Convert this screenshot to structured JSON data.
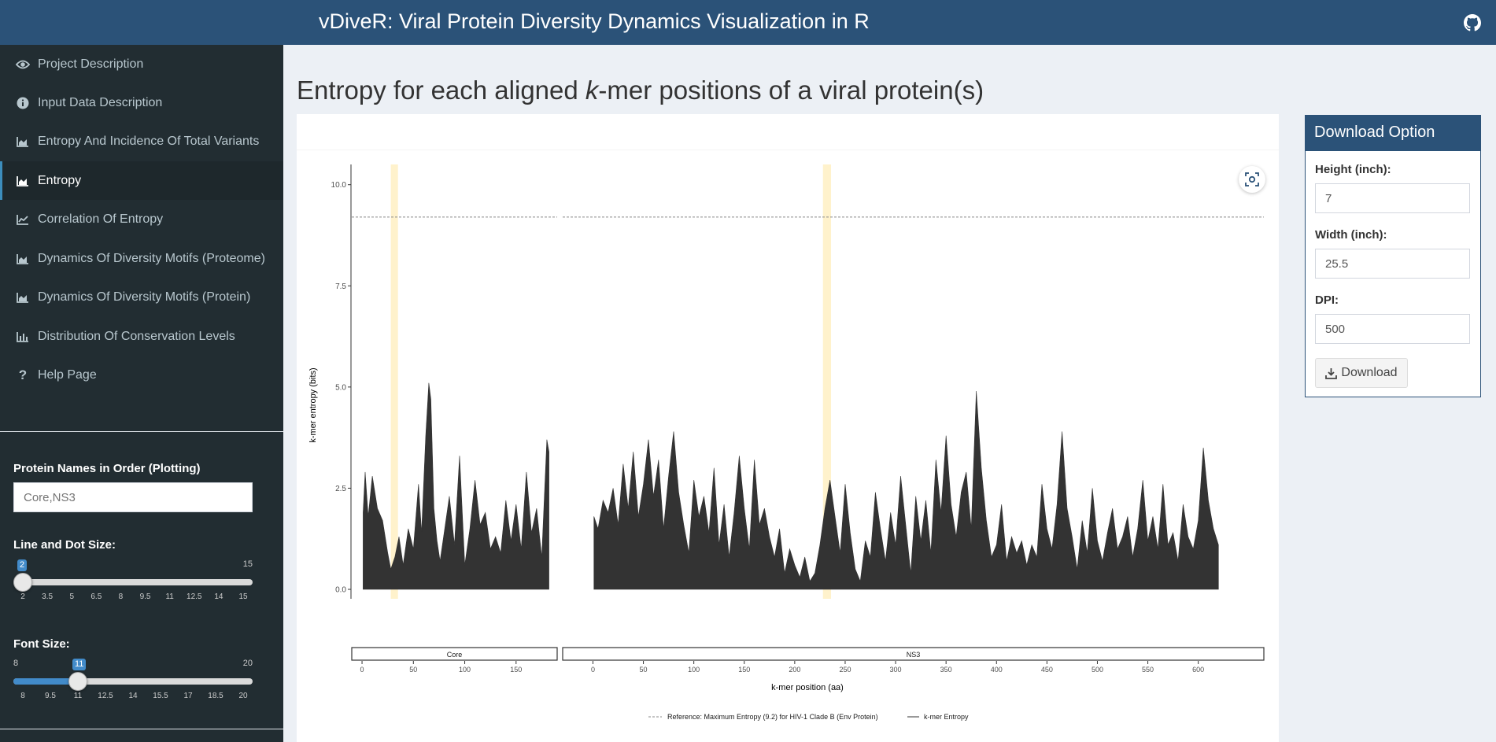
{
  "header": {
    "title": "vDiveR: Viral Protein Diversity Dynamics Visualization in R",
    "github_icon": "github-icon"
  },
  "sidebar": {
    "items": [
      {
        "label": "Project Description",
        "icon": "eye-icon",
        "active": false
      },
      {
        "label": "Input Data Description",
        "icon": "info-icon",
        "active": false
      },
      {
        "label": "Entropy And Incidence Of Total Variants",
        "icon": "area-chart-icon",
        "active": false
      },
      {
        "label": "Entropy",
        "icon": "area-chart-icon",
        "active": true
      },
      {
        "label": "Correlation Of Entropy",
        "icon": "line-chart-icon",
        "active": false
      },
      {
        "label": "Dynamics Of Diversity Motifs (Proteome)",
        "icon": "area-chart-icon",
        "active": false
      },
      {
        "label": "Dynamics Of Diversity Motifs (Protein)",
        "icon": "area-chart-icon",
        "active": false
      },
      {
        "label": "Distribution Of Conservation Levels",
        "icon": "bar-chart-icon",
        "active": false
      },
      {
        "label": "Help Page",
        "icon": "question-icon",
        "active": false
      }
    ],
    "protein_names": {
      "label": "Protein Names in Order (Plotting)",
      "placeholder": "Core,NS3"
    },
    "line_dot_size": {
      "label": "Line and Dot Size:",
      "min": "2",
      "max": "15",
      "value": "2",
      "fraction": 0.0,
      "ticks": [
        "2",
        "3.5",
        "5",
        "6.5",
        "8",
        "9.5",
        "11",
        "12.5",
        "14",
        "15"
      ]
    },
    "font_size": {
      "label": "Font Size:",
      "min": "8",
      "max": "20",
      "value": "11",
      "fraction": 0.25,
      "ticks": [
        "8",
        "9.5",
        "11",
        "12.5",
        "14",
        "15.5",
        "17",
        "18.5",
        "20"
      ]
    }
  },
  "main": {
    "title_before": "Entropy for each aligned ",
    "title_k": "k",
    "title_after": "-mer positions of a viral protein(s)"
  },
  "download": {
    "title": "Download Option",
    "height_label": "Height (inch):",
    "height_value": "7",
    "width_label": "Width (inch):",
    "width_value": "25.5",
    "dpi_label": "DPI:",
    "dpi_value": "500",
    "button_label": "Download"
  },
  "colors": {
    "header": "#2b5278",
    "sidebar": "#222d32",
    "accent": "#3c8dbc",
    "area": "#333333",
    "highlight": "#fff2cc"
  },
  "chart_data": {
    "type": "area",
    "ylabel": "k-mer entropy (bits)",
    "xlabel": "k-mer position (aa)",
    "ylim": [
      0,
      10.5
    ],
    "yticks": [
      "0.0",
      "2.5",
      "5.0",
      "7.5",
      "10.0"
    ],
    "reference_line": {
      "y": 9.2,
      "label": "Reference: Maximum Entropy (9.2) for HIV-1 Clade B (Env Protein)"
    },
    "legend": [
      "Reference: Maximum Entropy (9.2) for HIV-1 Clade B (Env Protein)",
      "k-mer Entropy"
    ],
    "legend_position": "bottom",
    "grid": false,
    "panels": [
      {
        "name": "Core",
        "xlim": [
          -10,
          190
        ],
        "xticks": [
          "0",
          "50",
          "100",
          "150"
        ],
        "xtick_values": [
          0,
          50,
          100,
          150
        ],
        "highlight": [
          28,
          35
        ],
        "x": [
          1,
          3,
          6,
          10,
          15,
          20,
          25,
          28,
          32,
          36,
          40,
          45,
          50,
          55,
          58,
          62,
          65,
          67,
          70,
          73,
          76,
          80,
          85,
          90,
          95,
          100,
          105,
          110,
          115,
          120,
          125,
          130,
          135,
          140,
          145,
          150,
          155,
          160,
          165,
          170,
          175,
          180,
          182
        ],
        "y": [
          1.9,
          2.9,
          1.8,
          2.8,
          2.0,
          1.7,
          0.9,
          0.5,
          0.8,
          1.3,
          0.6,
          1.5,
          1.0,
          2.6,
          1.4,
          3.8,
          5.1,
          4.7,
          2.0,
          1.2,
          0.7,
          1.4,
          2.3,
          1.1,
          3.3,
          0.6,
          1.5,
          2.7,
          1.6,
          1.9,
          1.0,
          1.3,
          0.9,
          2.2,
          1.2,
          2.1,
          1.0,
          2.9,
          1.4,
          2.0,
          0.8,
          3.7,
          3.4
        ]
      },
      {
        "name": "NS3",
        "xlim": [
          -30,
          665
        ],
        "xticks": [
          "0",
          "50",
          "100",
          "150",
          "200",
          "250",
          "300",
          "350",
          "400",
          "450",
          "500",
          "550",
          "600"
        ],
        "xtick_values": [
          0,
          50,
          100,
          150,
          200,
          250,
          300,
          350,
          400,
          450,
          500,
          550,
          600
        ],
        "highlight": [
          228,
          236
        ],
        "x": [
          1,
          5,
          10,
          15,
          20,
          25,
          30,
          35,
          40,
          45,
          50,
          55,
          60,
          65,
          70,
          75,
          80,
          85,
          90,
          95,
          100,
          105,
          110,
          115,
          120,
          125,
          130,
          135,
          140,
          145,
          150,
          155,
          160,
          165,
          170,
          175,
          180,
          185,
          190,
          195,
          200,
          205,
          210,
          215,
          220,
          225,
          230,
          235,
          240,
          245,
          250,
          255,
          260,
          265,
          270,
          275,
          280,
          285,
          290,
          295,
          300,
          305,
          310,
          315,
          320,
          325,
          330,
          335,
          340,
          345,
          350,
          355,
          360,
          365,
          370,
          375,
          380,
          385,
          390,
          395,
          400,
          405,
          410,
          415,
          420,
          425,
          430,
          435,
          440,
          445,
          450,
          455,
          460,
          465,
          470,
          475,
          480,
          485,
          490,
          495,
          500,
          505,
          510,
          515,
          520,
          525,
          530,
          535,
          540,
          545,
          550,
          555,
          560,
          565,
          570,
          575,
          580,
          585,
          590,
          595,
          600,
          605,
          610,
          615,
          620
        ],
        "y": [
          1.8,
          1.5,
          2.2,
          1.9,
          2.5,
          1.6,
          3.1,
          2.0,
          3.4,
          1.8,
          2.6,
          3.7,
          2.3,
          3.2,
          1.5,
          2.8,
          3.9,
          2.4,
          1.6,
          0.9,
          2.7,
          1.8,
          2.3,
          1.4,
          3.0,
          1.1,
          2.1,
          0.8,
          1.9,
          3.3,
          2.0,
          1.0,
          3.2,
          1.6,
          2.0,
          1.3,
          0.8,
          1.5,
          0.4,
          1.0,
          0.6,
          0.3,
          0.8,
          0.2,
          0.4,
          1.1,
          2.0,
          2.7,
          1.8,
          0.9,
          2.6,
          1.4,
          0.5,
          0.2,
          1.2,
          0.8,
          2.4,
          1.5,
          0.7,
          1.9,
          1.1,
          2.8,
          1.6,
          0.4,
          2.3,
          1.2,
          2.2,
          0.9,
          3.2,
          1.9,
          3.8,
          2.1,
          1.3,
          2.4,
          2.9,
          1.5,
          4.9,
          3.0,
          1.7,
          0.8,
          1.1,
          2.1,
          0.7,
          1.3,
          0.9,
          1.2,
          0.6,
          1.1,
          0.8,
          2.6,
          1.5,
          1.0,
          2.1,
          3.9,
          2.0,
          1.3,
          0.5,
          1.7,
          0.9,
          2.5,
          1.2,
          0.7,
          1.4,
          2.0,
          1.0,
          1.3,
          1.8,
          0.8,
          1.5,
          2.7,
          1.2,
          1.8,
          1.0,
          2.6,
          1.1,
          1.4,
          0.7,
          2.1,
          1.3,
          1.0,
          1.7,
          3.5,
          2.2,
          1.5,
          1.1
        ]
      }
    ]
  }
}
